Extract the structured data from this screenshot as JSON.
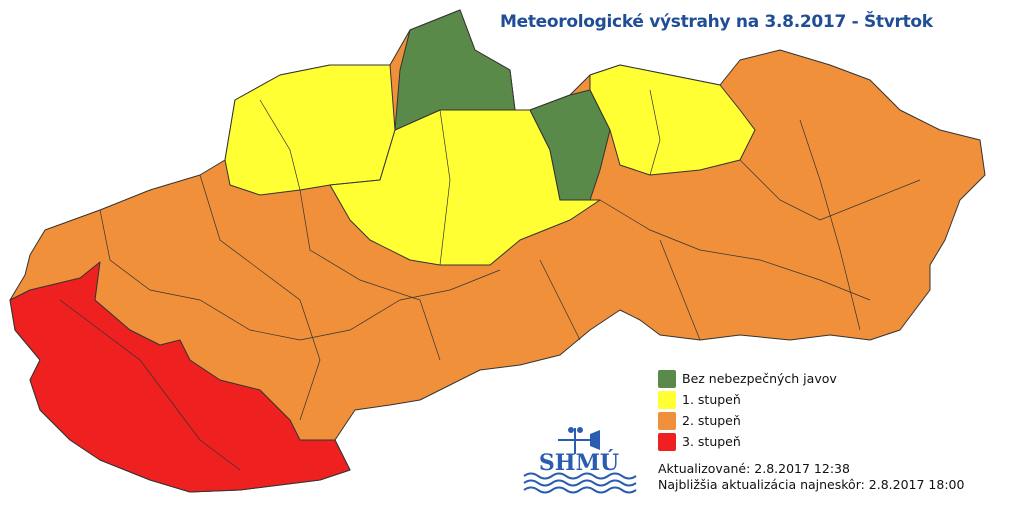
{
  "title": "Meteorologické výstrahy na 3.8.2017 - Štvrtok",
  "legend": [
    {
      "label": "Bez nebezpečných javov",
      "color": "#5a8a4a"
    },
    {
      "label": "1. stupeň",
      "color": "#ffff33"
    },
    {
      "label": "2. stupeň",
      "color": "#f0903a"
    },
    {
      "label": "3. stupeň",
      "color": "#ee2020"
    }
  ],
  "updated": "Aktualizované: 2.8.2017 12:38",
  "next_update": "Najbližšia aktualizácia najneskôr: 2.8.2017 18:00",
  "logo": {
    "text": "SHMÚ",
    "color": "#2a5db0"
  },
  "map": {
    "regions": [
      "2. stupeň",
      "3. stupeň",
      "1. stupeň",
      "Bez nebezpečných javov"
    ]
  }
}
